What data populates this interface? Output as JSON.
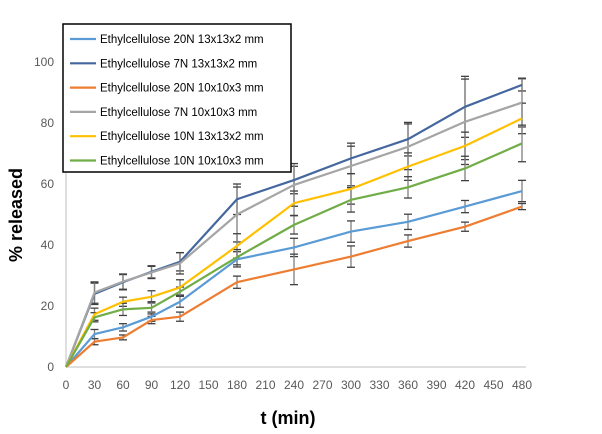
{
  "chart_data": {
    "type": "line",
    "title": "",
    "xlabel": "t (min)",
    "ylabel": "% released",
    "xlim": [
      0,
      480
    ],
    "ylim": [
      0,
      100
    ],
    "x_ticks": [
      0,
      30,
      60,
      90,
      120,
      150,
      180,
      210,
      240,
      270,
      300,
      330,
      360,
      390,
      420,
      450,
      480
    ],
    "y_ticks": [
      0,
      20,
      40,
      60,
      80,
      100
    ],
    "grid": false,
    "legend_position": "top-left",
    "x": [
      0,
      30,
      60,
      90,
      120,
      180,
      240,
      300,
      360,
      420,
      480
    ],
    "series": [
      {
        "name": "Ethylcellulose 20N 13x13x2 mm",
        "color": "#5b9bd5",
        "values": [
          0,
          10.8,
          13.0,
          16.5,
          21.4,
          35.3,
          39.2,
          44.4,
          47.6,
          52.6,
          57.7
        ],
        "errors": [
          0,
          1.5,
          1.2,
          1.5,
          1.8,
          2.5,
          3.0,
          3.5,
          2.5,
          2.0,
          3.5
        ]
      },
      {
        "name": "Ethylcellulose 7N 13x13x2 mm",
        "color": "#44679e",
        "values": [
          0,
          24.0,
          27.8,
          31.2,
          34.5,
          55.0,
          61.3,
          68.4,
          74.7,
          85.3,
          92.5
        ],
        "errors": [
          0,
          3.5,
          2.5,
          2.0,
          3.0,
          5.0,
          4.5,
          5.0,
          5.5,
          10.0,
          2.0
        ]
      },
      {
        "name": "Ethylcellulose 20N 10x10x3 mm",
        "color": "#ed7d31",
        "values": [
          0,
          8.3,
          9.7,
          15.4,
          16.5,
          27.8,
          32.0,
          36.2,
          41.3,
          46.0,
          52.6
        ],
        "errors": [
          0,
          1.0,
          0.8,
          1.2,
          1.5,
          2.0,
          5.0,
          3.5,
          2.0,
          1.5,
          1.0
        ]
      },
      {
        "name": "Ethylcellulose 7N 10x10x3 mm",
        "color": "#a5a5a5",
        "values": [
          0,
          24.4,
          28.0,
          31.0,
          34.0,
          50.0,
          59.7,
          65.9,
          72.2,
          80.4,
          86.7
        ],
        "errors": [
          0,
          3.5,
          2.5,
          2.0,
          3.5,
          9.0,
          7.0,
          6.5,
          7.5,
          14.0,
          8.0
        ]
      },
      {
        "name": "Ethylcellulose 10N 13x13x2 mm",
        "color": "#ffc000",
        "values": [
          0,
          17.3,
          21.4,
          23.0,
          26.1,
          39.7,
          53.7,
          58.4,
          65.7,
          72.5,
          81.5
        ],
        "errors": [
          0,
          2.0,
          1.5,
          2.0,
          2.5,
          4.0,
          4.0,
          5.0,
          4.5,
          4.5,
          5.0
        ]
      },
      {
        "name": "Ethylcellulose 10N 10x10x3 mm",
        "color": "#70ad47",
        "values": [
          0,
          16.3,
          18.9,
          19.4,
          24.7,
          36.0,
          46.6,
          54.8,
          58.9,
          65.1,
          73.3
        ],
        "errors": [
          0,
          1.5,
          2.0,
          2.0,
          1.5,
          2.5,
          3.0,
          4.0,
          3.5,
          4.0,
          6.0
        ]
      }
    ]
  }
}
